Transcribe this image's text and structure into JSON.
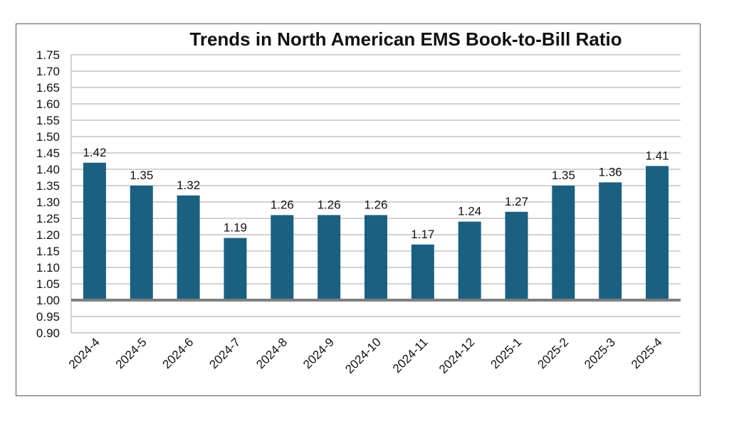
{
  "chart_data": {
    "type": "bar",
    "title": "Trends in North American EMS Book-to-Bill Ratio",
    "xlabel": "",
    "ylabel": "",
    "categories": [
      "2024-4",
      "2024-5",
      "2024-6",
      "2024-7",
      "2024-8",
      "2024-9",
      "2024-10",
      "2024-11",
      "2024-12",
      "2025-1",
      "2025-2",
      "2025-3",
      "2025-4"
    ],
    "values": [
      1.42,
      1.35,
      1.32,
      1.19,
      1.26,
      1.26,
      1.26,
      1.17,
      1.24,
      1.27,
      1.35,
      1.36,
      1.41
    ],
    "data_labels": [
      "1.42",
      "1.35",
      "1.32",
      "1.19",
      "1.26",
      "1.26",
      "1.26",
      "1.17",
      "1.24",
      "1.27",
      "1.35",
      "1.36",
      "1.41"
    ],
    "ylim": [
      0.9,
      1.75
    ],
    "yticks": [
      "0.90",
      "0.95",
      "1.00",
      "1.05",
      "1.10",
      "1.15",
      "1.20",
      "1.25",
      "1.30",
      "1.35",
      "1.40",
      "1.45",
      "1.50",
      "1.55",
      "1.60",
      "1.65",
      "1.70",
      "1.75"
    ],
    "baseline": 1.0,
    "grid": true,
    "legend": "none",
    "colors": {
      "bar": "#1a6080",
      "grid": "#a6a6a6",
      "baseline": "#7f7f7f",
      "text": "#111111"
    }
  }
}
